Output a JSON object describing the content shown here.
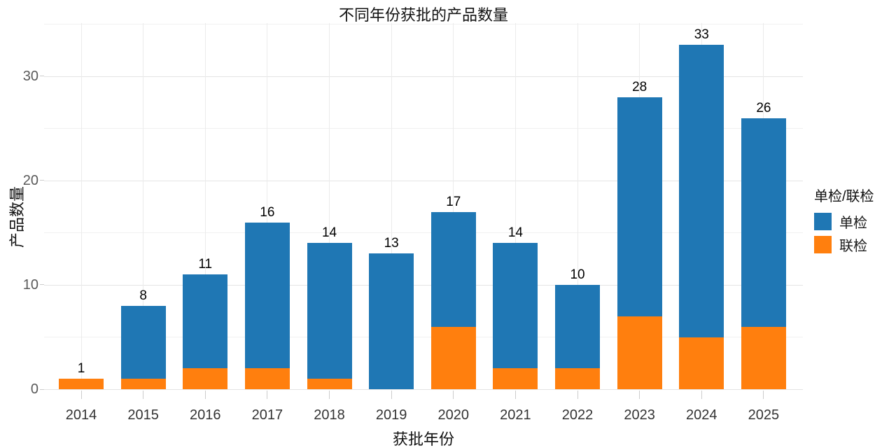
{
  "chart_data": {
    "type": "bar",
    "subtype": "stacked-vertical",
    "title": "不同年份获批的产品数量",
    "xlabel": "获批年份",
    "ylabel": "产品数量",
    "categories": [
      "2014",
      "2015",
      "2016",
      "2017",
      "2018",
      "2019",
      "2020",
      "2021",
      "2022",
      "2023",
      "2024",
      "2025"
    ],
    "series": [
      {
        "name": "单检",
        "color": "#1f77b4",
        "values": [
          0,
          7,
          9,
          14,
          13,
          13,
          11,
          12,
          8,
          21,
          28,
          20
        ]
      },
      {
        "name": "联检",
        "color": "#ff7f0e",
        "values": [
          1,
          1,
          2,
          2,
          1,
          0,
          6,
          2,
          2,
          7,
          5,
          6
        ]
      }
    ],
    "stack_order_bottom_to_top": [
      "联检",
      "单检"
    ],
    "totals": [
      1,
      8,
      11,
      16,
      14,
      13,
      17,
      14,
      10,
      28,
      33,
      26
    ],
    "ylim": [
      0,
      35.1
    ],
    "yticks": [
      0,
      10,
      20,
      30
    ],
    "yticks_minor": [
      5,
      15,
      25,
      35
    ],
    "grid": "on",
    "legend_title": "单检/联检",
    "legend_position": "right",
    "background_color": "#ffffff",
    "text_colors": {
      "title": "#111111",
      "axis_title": "#111111",
      "ytick": "#595959",
      "xtick": "#333333",
      "value_label": "#000000"
    }
  }
}
